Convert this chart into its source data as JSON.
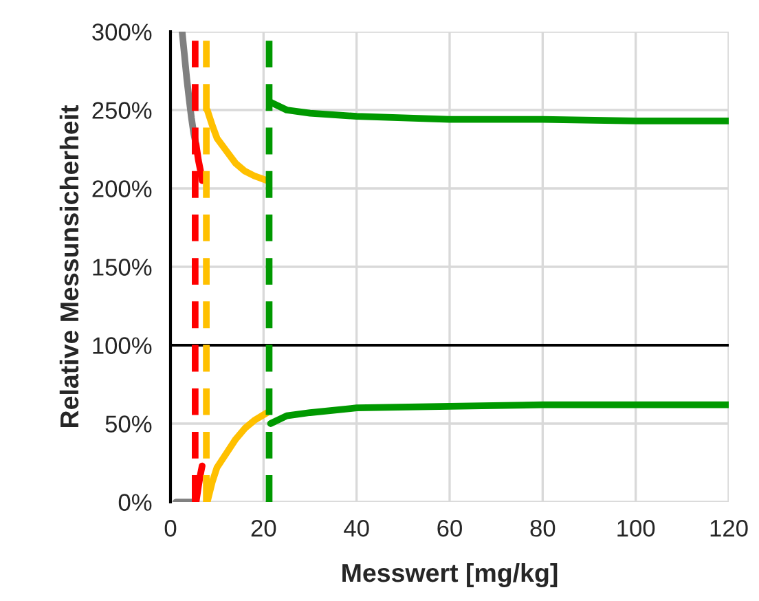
{
  "chart_data": {
    "type": "line",
    "xlabel": "Messwert [mg/kg]",
    "ylabel": "Relative Messunsicherheit",
    "xlim": [
      0,
      120
    ],
    "xticks": [
      0,
      20,
      40,
      60,
      80,
      100,
      120
    ],
    "ylim": [
      0,
      300
    ],
    "yticks": [
      {
        "value": 0,
        "label": "0%"
      },
      {
        "value": 50,
        "label": "50%"
      },
      {
        "value": 100,
        "label": "100%"
      },
      {
        "value": 150,
        "label": "150%"
      },
      {
        "value": 200,
        "label": "200%"
      },
      {
        "value": 250,
        "label": "250%"
      },
      {
        "value": 300,
        "label": "300%"
      }
    ],
    "grid": true,
    "marker": "none",
    "line_style": "solid",
    "series": [
      {
        "color": "#808080",
        "x": [
          2.5,
          3,
          3.5,
          4,
          4.5,
          5,
          5.5
        ],
        "values": [
          300,
          285,
          270,
          257,
          245,
          235,
          228
        ]
      },
      {
        "color": "#808080",
        "x": [
          1.2,
          3,
          5.5
        ],
        "values": [
          0,
          0,
          0
        ]
      },
      {
        "color": "#ff0000",
        "x": [
          5.5,
          6,
          6.4,
          6.8
        ],
        "values": [
          228,
          218,
          212,
          205
        ]
      },
      {
        "color": "#ff0000",
        "x": [
          5.5,
          6,
          6.4,
          6.8
        ],
        "values": [
          0,
          10,
          17,
          23
        ]
      },
      {
        "color": "#ffc000",
        "x": [
          7.9,
          9,
          10,
          12,
          14,
          16,
          18,
          20.8
        ],
        "values": [
          250,
          240,
          232,
          224,
          216,
          211,
          208,
          205
        ]
      },
      {
        "color": "#ffc000",
        "x": [
          7.9,
          9,
          10,
          12,
          14,
          16,
          18,
          20.8
        ],
        "values": [
          0,
          13,
          22,
          31,
          40,
          47,
          52,
          57
        ]
      },
      {
        "color": "#009900",
        "x": [
          21.5,
          25,
          30,
          40,
          60,
          80,
          100,
          120
        ],
        "values": [
          255,
          250,
          248,
          246,
          244,
          244,
          243,
          243
        ]
      },
      {
        "color": "#009900",
        "x": [
          21.5,
          25,
          30,
          40,
          60,
          80,
          100,
          120
        ],
        "values": [
          50,
          55,
          57,
          60,
          61,
          62,
          62,
          62
        ]
      }
    ],
    "ref_lines": [
      {
        "axis": "y",
        "value": 100,
        "color": "#000000",
        "line_style": "solid"
      },
      {
        "axis": "x",
        "value": 5.3,
        "color": "#ff0000",
        "line_style": "dashed"
      },
      {
        "axis": "x",
        "value": 7.7,
        "color": "#ffc000",
        "line_style": "dashed"
      },
      {
        "axis": "x",
        "value": 21.2,
        "color": "#009900",
        "line_style": "dashed"
      }
    ]
  }
}
